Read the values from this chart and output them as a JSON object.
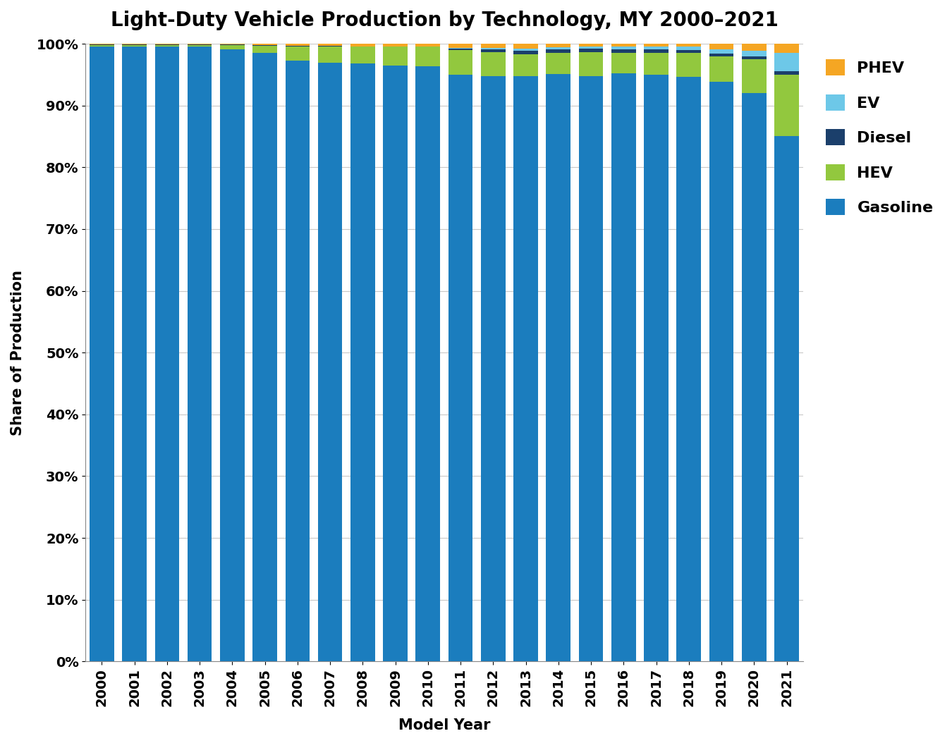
{
  "title": "Light-Duty Vehicle Production by Technology, MY 2000–2021",
  "xlabel": "Model Year",
  "ylabel": "Share of Production",
  "years": [
    2000,
    2001,
    2002,
    2003,
    2004,
    2005,
    2006,
    2007,
    2008,
    2009,
    2010,
    2011,
    2012,
    2013,
    2014,
    2015,
    2016,
    2017,
    2018,
    2019,
    2020,
    2021
  ],
  "gasoline": [
    99.6,
    99.6,
    99.5,
    99.5,
    99.1,
    98.5,
    97.3,
    96.9,
    96.8,
    96.5,
    96.3,
    95.0,
    94.8,
    94.7,
    95.1,
    94.8,
    95.2,
    95.0,
    94.6,
    93.8,
    92.0,
    85.0
  ],
  "hev": [
    0.2,
    0.2,
    0.3,
    0.3,
    0.7,
    1.2,
    2.3,
    2.7,
    2.7,
    3.0,
    3.2,
    4.0,
    3.8,
    3.6,
    3.4,
    3.8,
    3.3,
    3.5,
    3.9,
    4.2,
    5.5,
    10.0
  ],
  "diesel": [
    0.1,
    0.1,
    0.1,
    0.1,
    0.1,
    0.1,
    0.1,
    0.1,
    0.1,
    0.1,
    0.1,
    0.2,
    0.5,
    0.6,
    0.6,
    0.6,
    0.6,
    0.6,
    0.5,
    0.4,
    0.4,
    0.5
  ],
  "ev": [
    0.0,
    0.0,
    0.0,
    0.0,
    0.0,
    0.0,
    0.0,
    0.0,
    0.0,
    0.0,
    0.0,
    0.1,
    0.2,
    0.3,
    0.3,
    0.3,
    0.4,
    0.4,
    0.5,
    0.7,
    1.0,
    3.0
  ],
  "phev": [
    0.1,
    0.1,
    0.1,
    0.1,
    0.1,
    0.2,
    0.3,
    0.3,
    0.4,
    0.4,
    0.4,
    0.7,
    0.7,
    0.8,
    0.6,
    0.5,
    0.5,
    0.5,
    0.5,
    0.9,
    1.1,
    1.5
  ],
  "colors": {
    "gasoline": "#1B7DBE",
    "hev": "#92C83E",
    "diesel": "#1B3F6B",
    "ev": "#6DC8E8",
    "phev": "#F5A623"
  },
  "legend_labels": [
    "PHEV",
    "EV",
    "Diesel",
    "HEV",
    "Gasoline"
  ],
  "ylim": [
    0,
    100
  ],
  "background_color": "#FFFFFF",
  "grid_color": "#C8C8C8"
}
